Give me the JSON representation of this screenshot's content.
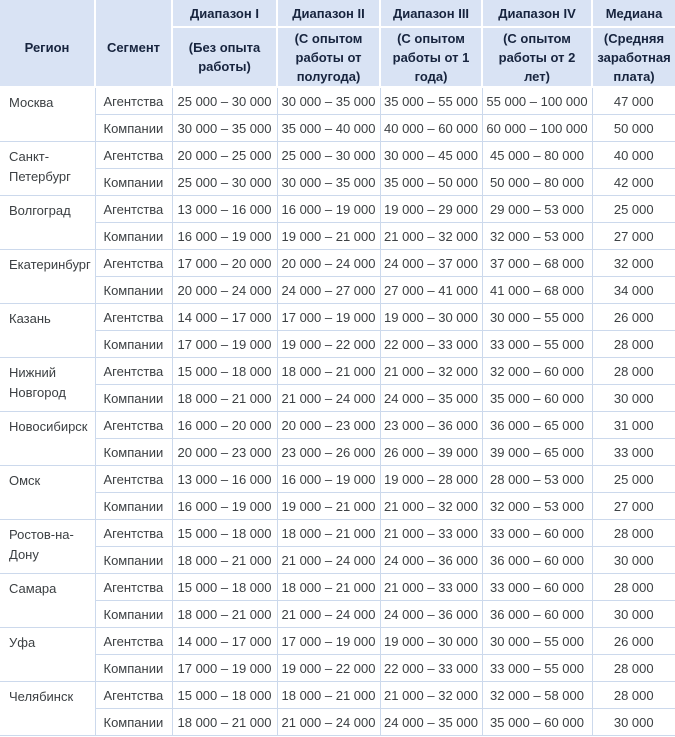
{
  "colors": {
    "header_background": "#d9e3f4",
    "header_text": "#17243e",
    "body_text": "#3c4043",
    "body_border": "#ccd9ec",
    "header_gap": "#ffffff"
  },
  "chart_data": {
    "type": "table",
    "columns": [
      {
        "title": "Регион",
        "subtitle": ""
      },
      {
        "title": "Сегмент",
        "subtitle": ""
      },
      {
        "title": "Диапазон I",
        "subtitle": "(Без опыта работы)"
      },
      {
        "title": "Диапазон II",
        "subtitle": "(С опытом работы от полугода)"
      },
      {
        "title": "Диапазон III",
        "subtitle": "(С опытом работы от 1 года)"
      },
      {
        "title": "Диапазон IV",
        "subtitle": "(С опытом работы от 2 лет)"
      },
      {
        "title": "Медиана",
        "subtitle": "(Средняя заработная плата)"
      }
    ],
    "segment_labels": [
      "Агентства",
      "Компании"
    ],
    "regions": [
      {
        "name": "Москва",
        "rows": [
          [
            "Агентства",
            "25 000 – 30 000",
            "30 000 – 35 000",
            "35 000 – 55 000",
            "55 000 – 100 000",
            "47 000"
          ],
          [
            "Компании",
            "30 000 – 35 000",
            "35 000 – 40 000",
            "40 000 – 60 000",
            "60 000 – 100 000",
            "50 000"
          ]
        ]
      },
      {
        "name": "Санкт-Петербург",
        "rows": [
          [
            "Агентства",
            "20 000 – 25 000",
            "25 000 – 30 000",
            "30 000 – 45 000",
            "45 000 – 80 000",
            "40 000"
          ],
          [
            "Компании",
            "25 000 – 30 000",
            "30 000 – 35 000",
            "35 000 – 50 000",
            "50 000 – 80 000",
            "42 000"
          ]
        ]
      },
      {
        "name": "Волгоград",
        "rows": [
          [
            "Агентства",
            "13 000 – 16 000",
            "16 000 – 19 000",
            "19 000 – 29 000",
            "29 000 – 53 000",
            "25 000"
          ],
          [
            "Компании",
            "16 000 – 19 000",
            "19 000 – 21 000",
            "21 000 – 32 000",
            "32 000 – 53 000",
            "27 000"
          ]
        ]
      },
      {
        "name": "Екатеринбург",
        "rows": [
          [
            "Агентства",
            "17 000 – 20 000",
            "20 000 – 24 000",
            "24 000 – 37 000",
            "37 000 – 68 000",
            "32 000"
          ],
          [
            "Компании",
            "20 000 – 24 000",
            "24 000 – 27 000",
            "27 000 – 41 000",
            "41 000 – 68 000",
            "34 000"
          ]
        ]
      },
      {
        "name": "Казань",
        "rows": [
          [
            "Агентства",
            "14 000 – 17 000",
            "17 000 – 19 000",
            "19 000 – 30 000",
            "30 000 – 55 000",
            "26 000"
          ],
          [
            "Компании",
            "17 000 – 19 000",
            "19 000 – 22 000",
            "22 000 – 33 000",
            "33 000 – 55 000",
            "28 000"
          ]
        ]
      },
      {
        "name": "Нижний Новгород",
        "rows": [
          [
            "Агентства",
            "15 000 – 18 000",
            "18 000 – 21 000",
            "21 000 – 32 000",
            "32 000 – 60 000",
            "28 000"
          ],
          [
            "Компании",
            "18 000 – 21 000",
            "21 000 – 24 000",
            "24 000 – 35 000",
            "35 000 – 60 000",
            "30 000"
          ]
        ]
      },
      {
        "name": "Новосибирск",
        "rows": [
          [
            "Агентства",
            "16 000 – 20 000",
            "20 000 – 23 000",
            "23 000 – 36 000",
            "36 000 – 65 000",
            "31 000"
          ],
          [
            "Компании",
            "20 000 – 23 000",
            "23 000 – 26 000",
            "26 000 – 39 000",
            "39 000 – 65 000",
            "33 000"
          ]
        ]
      },
      {
        "name": "Омск",
        "rows": [
          [
            "Агентства",
            "13 000 – 16 000",
            "16 000 – 19 000",
            "19 000 – 28 000",
            "28 000 – 53 000",
            "25 000"
          ],
          [
            "Компании",
            "16 000 – 19 000",
            "19 000 – 21 000",
            "21 000 – 32 000",
            "32 000 – 53 000",
            "27 000"
          ]
        ]
      },
      {
        "name": "Ростов-на-Дону",
        "rows": [
          [
            "Агентства",
            "15 000 – 18 000",
            "18 000 – 21 000",
            "21 000 – 33 000",
            "33 000 – 60 000",
            "28 000"
          ],
          [
            "Компании",
            "18 000 – 21 000",
            "21 000 – 24 000",
            "24 000 – 36 000",
            "36 000 – 60 000",
            "30 000"
          ]
        ]
      },
      {
        "name": "Самара",
        "rows": [
          [
            "Агентства",
            "15 000 – 18 000",
            "18 000 – 21 000",
            "21 000 – 33 000",
            "33 000 – 60 000",
            "28 000"
          ],
          [
            "Компании",
            "18 000 – 21 000",
            "21 000 – 24 000",
            "24 000 – 36 000",
            "36 000 – 60 000",
            "30 000"
          ]
        ]
      },
      {
        "name": "Уфа",
        "rows": [
          [
            "Агентства",
            "14 000 – 17 000",
            "17 000 – 19 000",
            "19 000 – 30 000",
            "30 000 – 55 000",
            "26 000"
          ],
          [
            "Компании",
            "17 000 – 19 000",
            "19 000 – 22 000",
            "22 000 – 33 000",
            "33 000 – 55 000",
            "28 000"
          ]
        ]
      },
      {
        "name": "Челябинск",
        "rows": [
          [
            "Агентства",
            "15 000 – 18 000",
            "18 000 – 21 000",
            "21 000 – 32 000",
            "32 000 – 58 000",
            "28 000"
          ],
          [
            "Компании",
            "18 000 – 21 000",
            "21 000 – 24 000",
            "24 000 – 35 000",
            "35 000 – 60 000",
            "30 000"
          ]
        ]
      }
    ]
  }
}
